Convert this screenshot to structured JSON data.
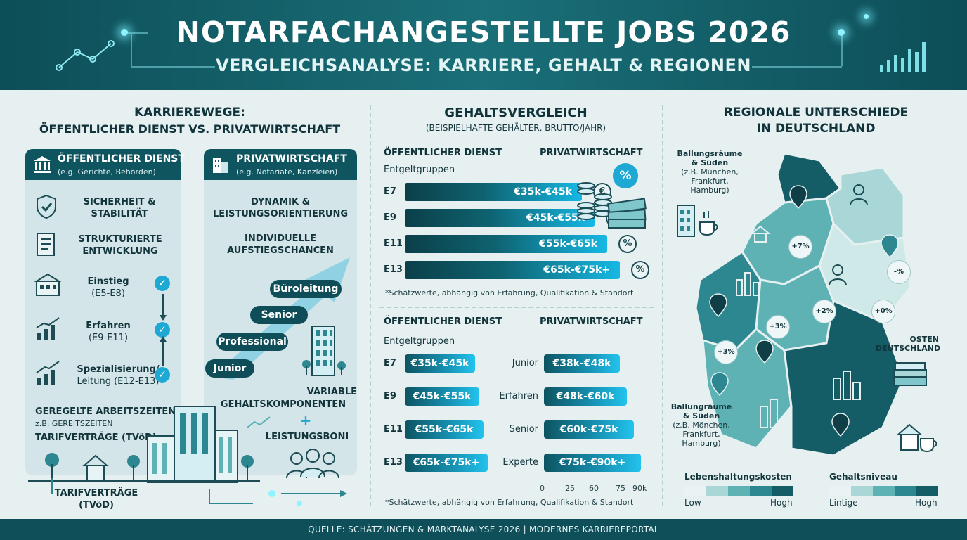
{
  "header": {
    "title": "NOTARFACHANGESTELLTE JOBS 2026",
    "subtitle": "VERGLEICHSANALYSE: KARRIERE, GEHALT & REGIONEN"
  },
  "career": {
    "title_line1": "KARRIEREWEGE:",
    "title_line2": "ÖFFENTLICHER DIENST VS. PRIVATWIRTSCHAFT",
    "public": {
      "title": "ÖFFENTLICHER DIENST",
      "subtitle": "(e.g. Gerichte, Behörden)",
      "features": [
        {
          "line1": "SICHERHEIT &",
          "line2": "STABILITÄT"
        },
        {
          "line1": "STRUKTURIERTE",
          "line2": "ENTWICKLUNG"
        }
      ],
      "steps": [
        {
          "name": "Einstieg",
          "grade": "(E5-E8)"
        },
        {
          "name": "Erfahren",
          "grade": "(E9-E11)"
        },
        {
          "name": "Spezialisierung/",
          "grade": "Leitung (E12-E13)"
        }
      ],
      "hours_title": "GEREGELTE ARBEITSZEITEN",
      "hours_sub": "z.B. GEREITSZEITEN",
      "tarif": "TARIFVERTRÄGE (TVöD)",
      "bottom_line1": "TARIFVERTRÄGE",
      "bottom_line2": "(TVöD)"
    },
    "private": {
      "title": "PRIVATWIRTSCHAFT",
      "subtitle": "(e.g. Notariate, Kanzleien)",
      "dyn_line1": "DYNAMIK &",
      "dyn_line2": "LEISTUNGSORIENTIERUNG",
      "aufs_line1": "INDIVIDUELLE",
      "aufs_line2": "AUFSTIEGSCHANCEN",
      "ladder": [
        "Büroleitung",
        "Senior",
        "Professional",
        "Junior"
      ],
      "var_line1": "VARIABLE",
      "var_line2": "GEHALTSKOMPONENTEN",
      "plus": "+",
      "boni": "LEISTUNGSBONI"
    }
  },
  "salary": {
    "title": "GEHALTSVERGLEICH",
    "subtitle": "(BEISPIELHAFTE GEHÄLTER, BRUTTO/JAHR)",
    "top": {
      "col_left": "ÖFFENTLICHER DIENST",
      "col_right": "PRIVATWIRTSCHAFT",
      "group_label": "Entgeltgruppen",
      "rows": [
        {
          "grade": "E7",
          "range": "€35k-€45k",
          "icon": "€"
        },
        {
          "grade": "E9",
          "range": "€45k-€55k",
          "icon": "€"
        },
        {
          "grade": "E11",
          "range": "€55k-€65k",
          "icon": "%"
        },
        {
          "grade": "E13",
          "range": "€65k-€75k+",
          "icon": "%"
        }
      ],
      "badge": "%",
      "note": "*Schätzwerte, abhängig von Erfahrung, Qualifikation & Standort"
    },
    "bottom": {
      "col_left": "ÖFFENTLICHER DIENST",
      "col_right": "PRIVATWIRTSCHAFT",
      "group_label": "Entgeltgruppen",
      "public_rows": [
        {
          "grade": "E7",
          "range": "€35k-€45k"
        },
        {
          "grade": "E9",
          "range": "€45k-€55k"
        },
        {
          "grade": "E11",
          "range": "€55k-€65k"
        },
        {
          "grade": "E13",
          "range": "€65k-€75k+"
        }
      ],
      "private_rows": [
        {
          "level": "Junior",
          "range": "€38k-€48k"
        },
        {
          "level": "Erfahren",
          "range": "€48k-€60k"
        },
        {
          "level": "Senior",
          "range": "€60k-€75k"
        },
        {
          "level": "Experte",
          "range": "€75k-€90k+"
        }
      ],
      "ticks": [
        "0",
        "25",
        "60",
        "75",
        "90k"
      ],
      "note": "*Schätzwerte, abhängig von Erfahrung, Qualifikation & Standort"
    }
  },
  "regional": {
    "title_line1": "REGIONALE UNTERSCHIEDE",
    "title_line2": "IN DEUTSCHLAND",
    "north_label": [
      "Ballungsräume",
      "& Süden",
      "(z.B. München,",
      "Frankfurt,",
      "Hamburg)"
    ],
    "south_label": [
      "Ballungräume",
      "& Süden",
      "(z.B. Mönchen,",
      "Frankfurt,",
      "Hamburg)"
    ],
    "east_label": [
      "OSTEN",
      "DEUTSCHLAND"
    ],
    "percent_badges": [
      "+7%",
      "-%",
      "+2%",
      "+0%",
      "+3%",
      "+3%"
    ],
    "legend_cost": {
      "title": "Lebenshaltungskosten",
      "low": "Low",
      "high": "Hogh"
    },
    "legend_salary": {
      "title": "Gehaltsniveau",
      "low": "Lintige",
      "high": "Hogh"
    },
    "colors": [
      "#e9f3f3",
      "#a9d6d6",
      "#5fb2b4",
      "#2c8790",
      "#145d67"
    ]
  },
  "footer": {
    "source": "QUELLE: SCHÄTZUNGEN & MARKTANALYSE 2026 | MODERNES KARRIEREPORTAL"
  }
}
